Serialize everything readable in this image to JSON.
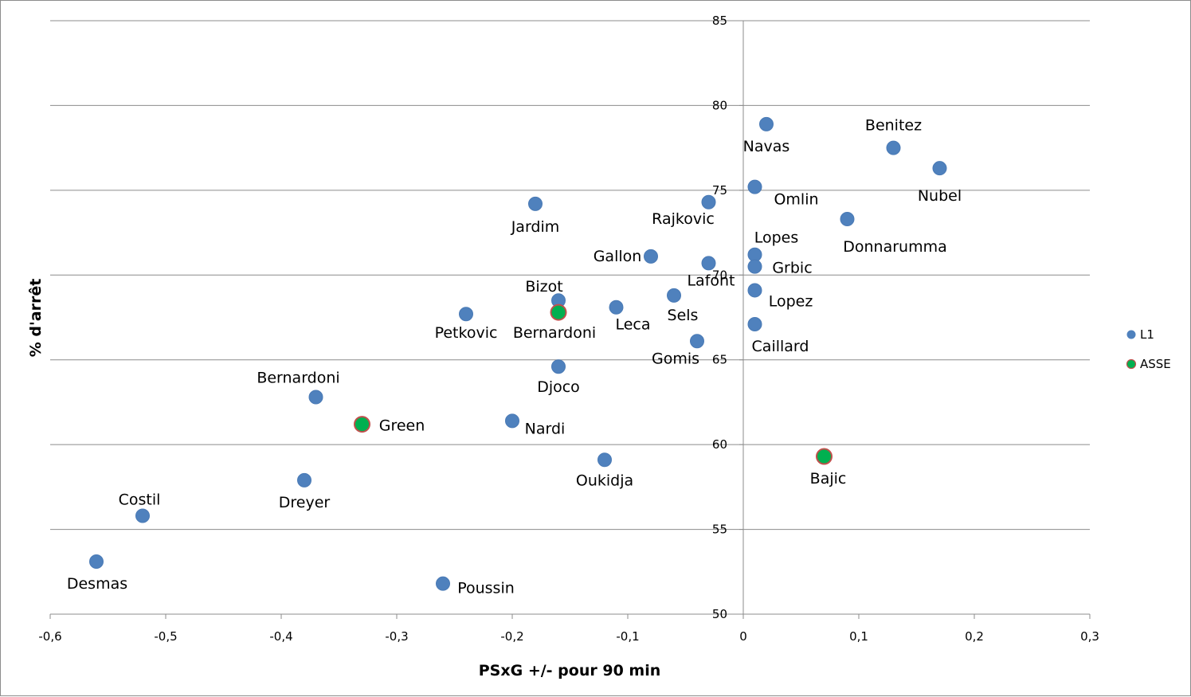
{
  "chart_data": {
    "type": "scatter",
    "title": "",
    "xlabel": "PSxG +/- pour 90 min",
    "ylabel": "% d'arrêt",
    "xlim": [
      -0.6,
      0.3
    ],
    "ylim": [
      50,
      85
    ],
    "x_ticks": [
      "-0,6",
      "-0,5",
      "-0,4",
      "-0,3",
      "-0,2",
      "-0,1",
      "0",
      "0,1",
      "0,2",
      "0,3"
    ],
    "y_ticks": [
      "50",
      "55",
      "60",
      "65",
      "70",
      "75",
      "80",
      "85"
    ],
    "grid": "horizontal",
    "legend_position": "right",
    "series": [
      {
        "name": "L1",
        "color": "#4f81bd",
        "points": [
          {
            "label": "Navas",
            "x": 0.02,
            "y": 78.9
          },
          {
            "label": "Benitez",
            "x": 0.13,
            "y": 77.5
          },
          {
            "label": "Nubel",
            "x": 0.17,
            "y": 76.3
          },
          {
            "label": "Omlin",
            "x": 0.01,
            "y": 75.2
          },
          {
            "label": "Rajkovic",
            "x": -0.03,
            "y": 74.3
          },
          {
            "label": "Jardim",
            "x": -0.18,
            "y": 74.2
          },
          {
            "label": "Donnarumma",
            "x": 0.09,
            "y": 73.3
          },
          {
            "label": "Lopes",
            "x": 0.01,
            "y": 71.2
          },
          {
            "label": "Gallon",
            "x": -0.08,
            "y": 71.1
          },
          {
            "label": "Lafont",
            "x": -0.03,
            "y": 70.7
          },
          {
            "label": "Grbic",
            "x": 0.01,
            "y": 70.5
          },
          {
            "label": "Lopez",
            "x": 0.01,
            "y": 69.1
          },
          {
            "label": "Sels",
            "x": -0.06,
            "y": 68.8
          },
          {
            "label": "Bizot",
            "x": -0.16,
            "y": 68.5
          },
          {
            "label": "Leca",
            "x": -0.11,
            "y": 68.1
          },
          {
            "label": "Petkovic",
            "x": -0.24,
            "y": 67.7
          },
          {
            "label": "Caillard",
            "x": 0.01,
            "y": 67.1
          },
          {
            "label": "Gomis",
            "x": -0.04,
            "y": 66.1
          },
          {
            "label": "Djoco",
            "x": -0.16,
            "y": 64.6
          },
          {
            "label": "Bernardoni",
            "x": -0.37,
            "y": 62.8
          },
          {
            "label": "Nardi",
            "x": -0.2,
            "y": 61.4
          },
          {
            "label": "Oukidja",
            "x": -0.12,
            "y": 59.1
          },
          {
            "label": "Dreyer",
            "x": -0.38,
            "y": 57.9
          },
          {
            "label": "Costil",
            "x": -0.52,
            "y": 55.8
          },
          {
            "label": "Desmas",
            "x": -0.56,
            "y": 53.1
          },
          {
            "label": "Poussin",
            "x": -0.26,
            "y": 51.8
          }
        ]
      },
      {
        "name": "ASSE",
        "color": "#00b050",
        "edge_color": "#c0504d",
        "points": [
          {
            "label": "Bernardoni",
            "x": -0.16,
            "y": 67.8
          },
          {
            "label": "Green",
            "x": -0.33,
            "y": 61.2
          },
          {
            "label": "Bajic",
            "x": 0.07,
            "y": 59.3
          }
        ]
      }
    ]
  }
}
